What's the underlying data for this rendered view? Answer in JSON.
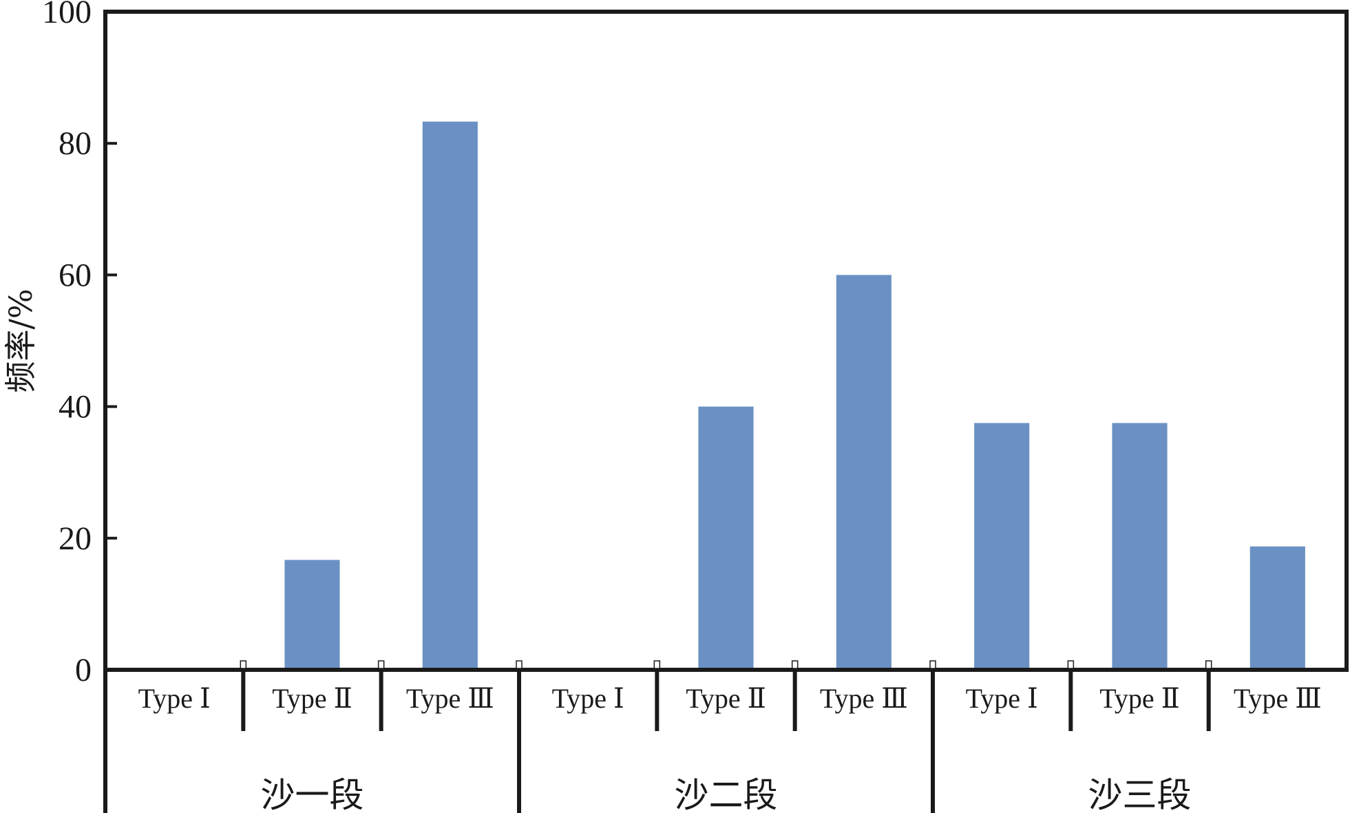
{
  "chart_data": {
    "type": "bar",
    "ylabel": "频率/%",
    "xlabel": "",
    "ylim": [
      0,
      100
    ],
    "yticks": [
      "0",
      "20",
      "40",
      "60",
      "80",
      "100"
    ],
    "groups": [
      {
        "name": "沙一段",
        "categories": [
          "Type Ⅰ",
          "Type Ⅱ",
          "Type Ⅲ"
        ],
        "values": [
          0,
          16.7,
          83.3
        ]
      },
      {
        "name": "沙二段",
        "categories": [
          "Type Ⅰ",
          "Type  Ⅱ",
          "Type Ⅲ"
        ],
        "values": [
          0,
          40,
          60
        ]
      },
      {
        "name": "沙三段",
        "categories": [
          "Type Ⅰ",
          "Type Ⅱ",
          "Type  Ⅲ"
        ],
        "values": [
          37.5,
          37.5,
          18.75
        ]
      }
    ],
    "bar_color": "#6b91c4",
    "axis_color": "#1a1a1a",
    "grid": false,
    "legend": "none"
  }
}
